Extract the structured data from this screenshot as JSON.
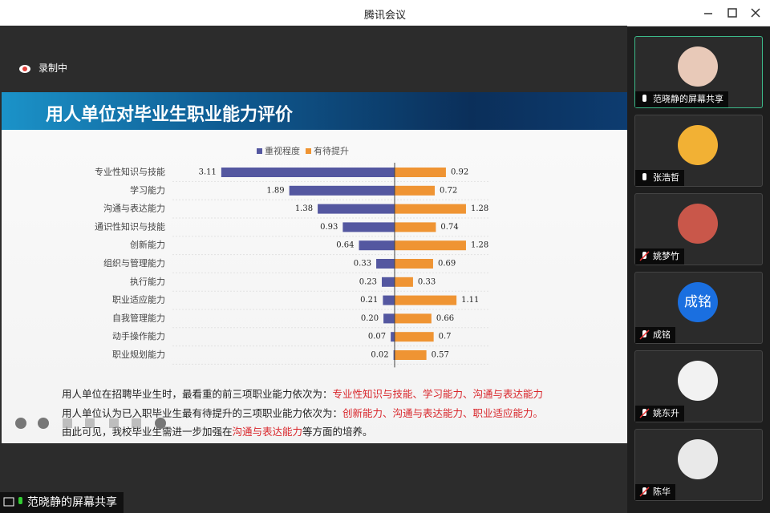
{
  "window": {
    "title": "腾讯会议"
  },
  "recording": "录制中",
  "slide": {
    "title": "用人单位对毕业生职业能力评价",
    "lines": [
      [
        {
          "text": "用人单位在招聘毕业生时，最看重的前三项职业能力依次为：",
          "color": "#222222"
        },
        {
          "text": "专业性知识与技能、学习能力、沟通与表达能力",
          "color": "#d9262b"
        }
      ],
      [
        {
          "text": "用人单位认为已入职毕业生最有待提升的三项职业能力依次为：",
          "color": "#222222"
        },
        {
          "text": "创新能力、沟通与表达能力、职业适应能力。",
          "color": "#d9262b"
        }
      ],
      [
        {
          "text": "由此可见，我校毕业生需进一步加强在",
          "color": "#222222"
        },
        {
          "text": "沟通与表达能力",
          "color": "#d9262b"
        },
        {
          "text": "等方面的培养。",
          "color": "#222222"
        }
      ]
    ]
  },
  "chart_data": {
    "type": "diverging-bar",
    "categories": [
      "专业性知识与技能",
      "学习能力",
      "沟通与表达能力",
      "通识性知识与技能",
      "创新能力",
      "组织与管理能力",
      "执行能力",
      "职业适应能力",
      "自我管理能力",
      "动手操作能力",
      "职业规划能力"
    ],
    "series": [
      {
        "name": "重视程度",
        "color": "#5457a0",
        "values": [
          3.11,
          1.89,
          1.38,
          0.93,
          0.64,
          0.33,
          0.23,
          0.21,
          0.2,
          0.07,
          0.02
        ],
        "value_labels": [
          "3.11",
          "1.89",
          "1.38",
          "0.93",
          "0.64",
          "0.33",
          "0.23",
          "0.21",
          "0.20",
          "0.07",
          "0.02"
        ]
      },
      {
        "name": "有待提升",
        "color": "#ef9433",
        "values": [
          0.92,
          0.72,
          1.28,
          0.74,
          1.28,
          0.69,
          0.33,
          1.11,
          0.66,
          0.7,
          0.57
        ]
      }
    ]
  },
  "share_label": "范晓静的屏幕共享",
  "participants": [
    {
      "name": "范晓静的屏幕共享",
      "avatar": "#e8c9b8"
    },
    {
      "name": "张浩哲",
      "avatar": "#f2b134"
    },
    {
      "name": "姚梦竹",
      "avatar": "#c9574a"
    },
    {
      "name": "成铭",
      "avatar": "#1a6fe0",
      "avatar_text": "成铭"
    },
    {
      "name": "姚东升",
      "avatar": "#f2f2f2"
    },
    {
      "name": "陈华",
      "avatar": "#e9e9e9"
    }
  ]
}
